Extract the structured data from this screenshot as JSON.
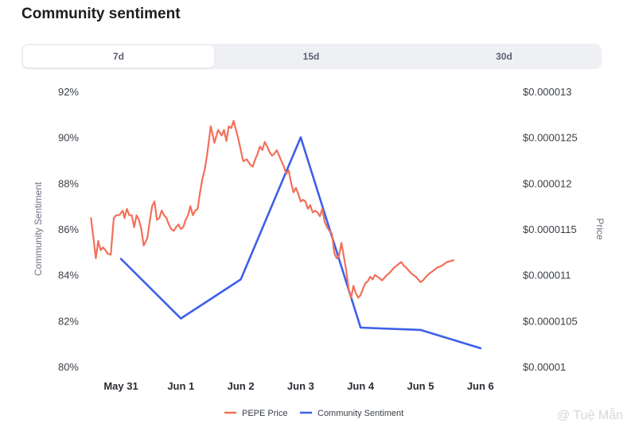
{
  "title": "Community sentiment",
  "tabs": [
    {
      "label": "7d",
      "active": true
    },
    {
      "label": "15d",
      "active": false
    },
    {
      "label": "30d",
      "active": false
    }
  ],
  "watermark": "@ Tuệ Mẫn",
  "colors": {
    "price": "#f2705a",
    "sentiment": "#3d5fea",
    "highlight_tick": "#3d5fea"
  },
  "chart_data": {
    "type": "line",
    "x_ticks": [
      "May 31",
      "Jun 1",
      "Jun 2",
      "Jun 3",
      "Jun 4",
      "Jun 5",
      "Jun 6"
    ],
    "x_tick_highlight": "Jun 6",
    "y_left": {
      "label": "Community Sentiment",
      "ticks": [
        "92%",
        "90%",
        "88%",
        "86%",
        "84%",
        "82%",
        "80%"
      ],
      "range": [
        80,
        92
      ]
    },
    "y_right": {
      "label": "Price",
      "ticks": [
        "$0.000013",
        "$0.0000125",
        "$0.000012",
        "$0.0000115",
        "$0.000011",
        "$0.0000105",
        "$0.00001"
      ],
      "range": [
        1e-05,
        1.3e-05
      ]
    },
    "legend": [
      "PEPE Price",
      "Community Sentiment"
    ],
    "legend_position": "bottom",
    "grid": false,
    "series": [
      {
        "name": "Community Sentiment",
        "axis": "left",
        "x": [
          0,
          1,
          2,
          3,
          4,
          5,
          6
        ],
        "values": [
          84.7,
          82.1,
          83.8,
          90.0,
          81.7,
          81.6,
          80.8
        ]
      },
      {
        "name": "PEPE Price",
        "axis": "right",
        "x": [
          -0.5,
          -0.46,
          -0.42,
          -0.38,
          -0.34,
          -0.3,
          -0.26,
          -0.22,
          -0.17,
          -0.12,
          -0.08,
          -0.03,
          0.03,
          0.06,
          0.1,
          0.14,
          0.18,
          0.22,
          0.26,
          0.3,
          0.34,
          0.38,
          0.44,
          0.48,
          0.52,
          0.56,
          0.6,
          0.64,
          0.68,
          0.72,
          0.76,
          0.8,
          0.84,
          0.88,
          0.92,
          0.96,
          1.0,
          1.04,
          1.08,
          1.12,
          1.16,
          1.2,
          1.24,
          1.28,
          1.32,
          1.36,
          1.4,
          1.44,
          1.5,
          1.56,
          1.62,
          1.68,
          1.72,
          1.76,
          1.8,
          1.84,
          1.88,
          1.92,
          1.96,
          2.0,
          2.04,
          2.1,
          2.16,
          2.2,
          2.24,
          2.28,
          2.32,
          2.36,
          2.4,
          2.44,
          2.48,
          2.52,
          2.56,
          2.6,
          2.64,
          2.68,
          2.72,
          2.76,
          2.8,
          2.84,
          2.88,
          2.92,
          2.96,
          3.0,
          3.04,
          3.08,
          3.12,
          3.16,
          3.2,
          3.24,
          3.28,
          3.32,
          3.36,
          3.4,
          3.44,
          3.48,
          3.52,
          3.56,
          3.6,
          3.64,
          3.68,
          3.72,
          3.76,
          3.8,
          3.84,
          3.88,
          3.92,
          3.96,
          4.0,
          4.04,
          4.08,
          4.12,
          4.16,
          4.2,
          4.24,
          4.28,
          4.32,
          4.36,
          4.4,
          4.44,
          4.48,
          4.52,
          4.56,
          4.6,
          4.64,
          4.68,
          4.72,
          4.76,
          4.8,
          4.84,
          4.88,
          4.92,
          4.96,
          5.0,
          5.04,
          5.08,
          5.12,
          5.16,
          5.2,
          5.24,
          5.28,
          5.32,
          5.36,
          5.4,
          5.44,
          5.5,
          5.55
        ],
        "values": [
          1.162e-05,
          1.14e-05,
          1.118e-05,
          1.137e-05,
          1.127e-05,
          1.13e-05,
          1.127e-05,
          1.123e-05,
          1.122e-05,
          1.162e-05,
          1.165e-05,
          1.165e-05,
          1.17e-05,
          1.162e-05,
          1.172e-05,
          1.165e-05,
          1.165e-05,
          1.152e-05,
          1.165e-05,
          1.16e-05,
          1.15e-05,
          1.132e-05,
          1.14e-05,
          1.158e-05,
          1.175e-05,
          1.18e-05,
          1.16e-05,
          1.162e-05,
          1.17e-05,
          1.165e-05,
          1.162e-05,
          1.155e-05,
          1.15e-05,
          1.148e-05,
          1.152e-05,
          1.155e-05,
          1.15e-05,
          1.152e-05,
          1.16e-05,
          1.165e-05,
          1.175e-05,
          1.165e-05,
          1.17e-05,
          1.172e-05,
          1.19e-05,
          1.205e-05,
          1.215e-05,
          1.232e-05,
          1.262e-05,
          1.244e-05,
          1.258e-05,
          1.252e-05,
          1.258e-05,
          1.246e-05,
          1.262e-05,
          1.26e-05,
          1.268e-05,
          1.258e-05,
          1.248e-05,
          1.236e-05,
          1.224e-05,
          1.226e-05,
          1.22e-05,
          1.218e-05,
          1.226e-05,
          1.232e-05,
          1.24e-05,
          1.236e-05,
          1.245e-05,
          1.24e-05,
          1.234e-05,
          1.23e-05,
          1.232e-05,
          1.236e-05,
          1.23e-05,
          1.224e-05,
          1.218e-05,
          1.21e-05,
          1.214e-05,
          1.2e-05,
          1.19e-05,
          1.195e-05,
          1.188e-05,
          1.18e-05,
          1.182e-05,
          1.18e-05,
          1.172e-05,
          1.176e-05,
          1.168e-05,
          1.17e-05,
          1.168e-05,
          1.164e-05,
          1.172e-05,
          1.158e-05,
          1.152e-05,
          1.148e-05,
          1.145e-05,
          1.124e-05,
          1.118e-05,
          1.121e-05,
          1.135e-05,
          1.12e-05,
          1.105e-05,
          1.085e-05,
          1.075e-05,
          1.088e-05,
          1.08e-05,
          1.075e-05,
          1.078e-05,
          1.085e-05,
          1.091e-05,
          1.093e-05,
          1.098e-05,
          1.095e-05,
          1.1e-05,
          1.098e-05,
          1.096e-05,
          1.094e-05,
          1.097e-05,
          1.1e-05,
          1.102e-05,
          1.105e-05,
          1.108e-05,
          1.11e-05,
          1.112e-05,
          1.114e-05,
          1.11e-05,
          1.108e-05,
          1.105e-05,
          1.102e-05,
          1.1e-05,
          1.098e-05,
          1.095e-05,
          1.092e-05,
          1.094e-05,
          1.097e-05,
          1.1e-05,
          1.102e-05,
          1.104e-05,
          1.106e-05,
          1.108e-05,
          1.109e-05,
          1.11e-05,
          1.112e-05,
          1.114e-05,
          1.115e-05,
          1.116e-05
        ]
      }
    ]
  }
}
